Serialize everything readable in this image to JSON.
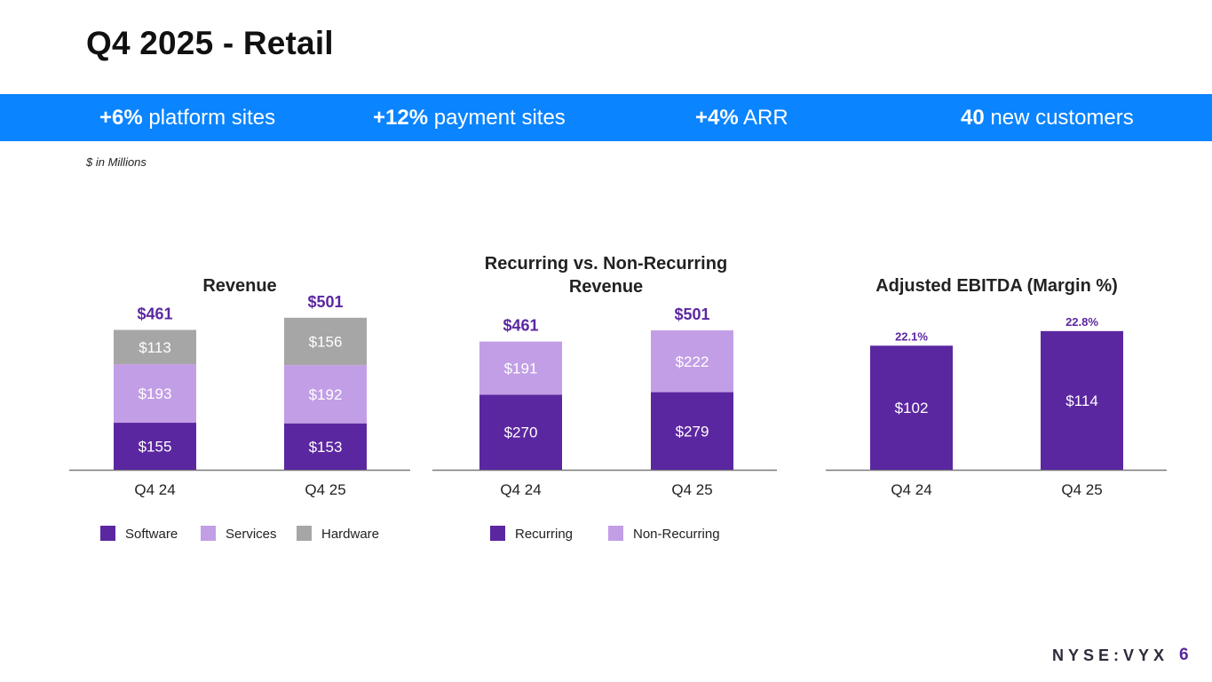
{
  "header": {
    "title": "Q4 2025 - Retail"
  },
  "banner": {
    "kpis": [
      {
        "value": "+6%",
        "label": "platform sites"
      },
      {
        "value": "+12%",
        "label": "payment sites"
      },
      {
        "value": "+4%",
        "label": "ARR"
      },
      {
        "value": "40",
        "label": "new customers"
      }
    ]
  },
  "note": "$ in Millions",
  "colors": {
    "software": "#5b27a0",
    "services": "#c29ee6",
    "hardware": "#a6a6a6",
    "recurring": "#5b27a0",
    "nonrecurring": "#c29ee6",
    "ebitda": "#5b27a0",
    "total_label": "#5b27a0",
    "banner": "#0a84ff"
  },
  "chart_data": [
    {
      "type": "bar",
      "stacked": true,
      "title": "Revenue",
      "categories": [
        "Q4 24",
        "Q4 25"
      ],
      "series": [
        {
          "name": "Software",
          "values": [
            155,
            153
          ],
          "labels": [
            "$155",
            "$153"
          ]
        },
        {
          "name": "Services",
          "values": [
            193,
            192
          ],
          "labels": [
            "$193",
            "$192"
          ]
        },
        {
          "name": "Hardware",
          "values": [
            113,
            156
          ],
          "labels": [
            "$113",
            "$156"
          ]
        }
      ],
      "totals": [
        "$461",
        "$501"
      ],
      "legend": [
        "Software",
        "Services",
        "Hardware"
      ]
    },
    {
      "type": "bar",
      "stacked": true,
      "title": "Recurring vs. Non-Recurring Revenue",
      "categories": [
        "Q4 24",
        "Q4 25"
      ],
      "series": [
        {
          "name": "Recurring",
          "values": [
            270,
            279
          ],
          "labels": [
            "$270",
            "$279"
          ]
        },
        {
          "name": "Non-Recurring",
          "values": [
            191,
            222
          ],
          "labels": [
            "$191",
            "$222"
          ]
        }
      ],
      "totals": [
        "$461",
        "$501"
      ],
      "legend": [
        "Recurring",
        "Non-Recurring"
      ]
    },
    {
      "type": "bar",
      "stacked": false,
      "title": "Adjusted EBITDA (Margin %)",
      "categories": [
        "Q4 24",
        "Q4 25"
      ],
      "series": [
        {
          "name": "Adjusted EBITDA",
          "values": [
            102,
            114
          ],
          "labels": [
            "$102",
            "$114"
          ]
        }
      ],
      "top_labels": [
        "22.1%",
        "22.8%"
      ],
      "legend": []
    }
  ],
  "footer": {
    "brand": "NYSE:VYX",
    "page": "6"
  }
}
